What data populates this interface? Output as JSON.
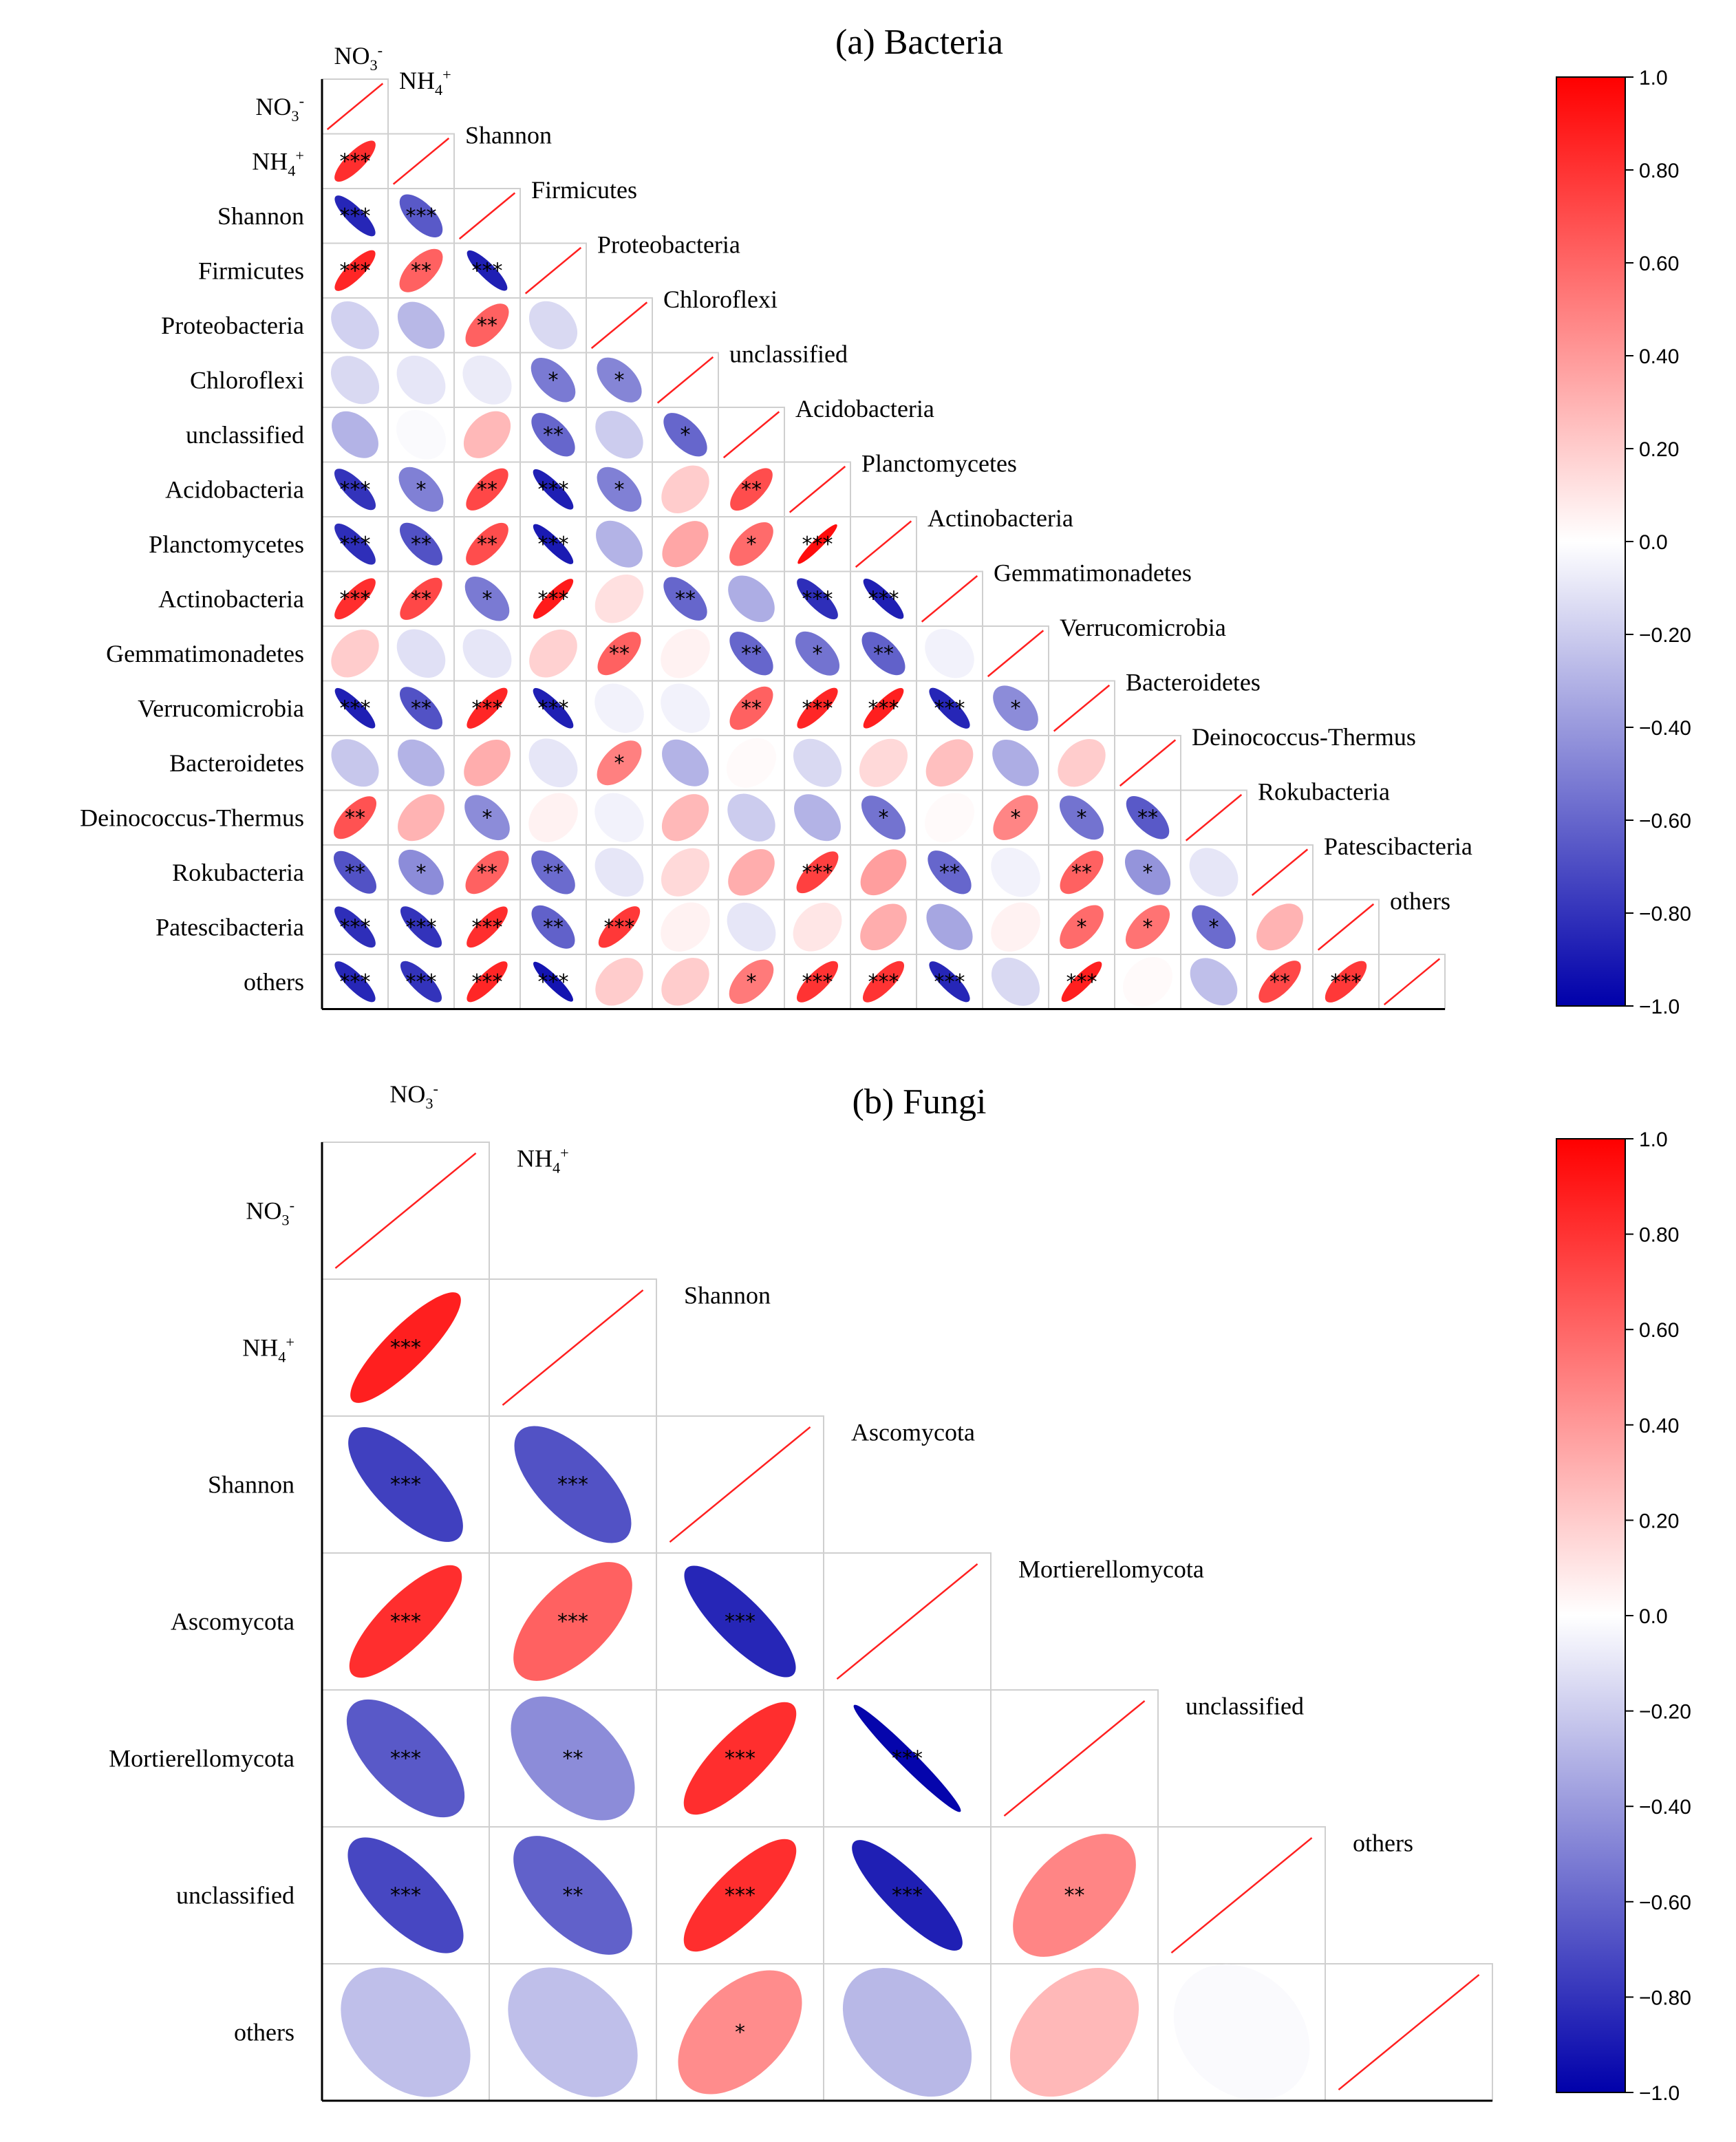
{
  "chart_data": [
    {
      "type": "heatmap",
      "title": "(a) Bacteria",
      "variables": [
        "NO3-",
        "NH4+",
        "Shannon",
        "Firmicutes",
        "Proteobacteria",
        "Chloroflexi",
        "unclassified",
        "Acidobacteria",
        "Planctomycetes",
        "Actinobacteria",
        "Gemmatimonadetes",
        "Verrucomicrobia",
        "Bacteroidetes",
        "Deinococcus-Thermus",
        "Rokubacteria",
        "Patescibacteria",
        "others"
      ],
      "correlations": [
        [
          0.82
        ],
        [
          -0.85,
          -0.65
        ],
        [
          0.85,
          0.62,
          -0.88
        ],
        [
          -0.18,
          -0.28,
          0.62,
          -0.15
        ],
        [
          -0.15,
          -0.1,
          -0.08,
          -0.52,
          -0.48
        ],
        [
          -0.3,
          -0.02,
          0.28,
          -0.6,
          -0.2,
          -0.6
        ],
        [
          -0.8,
          -0.5,
          0.72,
          -0.88,
          -0.5,
          0.2,
          0.7
        ],
        [
          -0.82,
          -0.68,
          0.7,
          -0.9,
          -0.3,
          0.35,
          0.58,
          0.95
        ],
        [
          0.82,
          0.72,
          -0.52,
          0.9,
          0.12,
          -0.6,
          -0.32,
          -0.82,
          -0.88
        ],
        [
          0.2,
          -0.12,
          -0.1,
          0.18,
          0.62,
          0.05,
          -0.6,
          -0.55,
          -0.62,
          -0.05
        ],
        [
          -0.88,
          -0.68,
          0.85,
          -0.88,
          -0.05,
          -0.05,
          0.62,
          0.85,
          0.88,
          -0.85,
          -0.45
        ],
        [
          -0.22,
          -0.3,
          0.32,
          -0.1,
          0.5,
          -0.3,
          0.02,
          -0.15,
          0.15,
          0.25,
          -0.32,
          0.2
        ],
        [
          0.68,
          0.3,
          -0.45,
          0.05,
          -0.05,
          0.28,
          -0.2,
          -0.3,
          -0.55,
          0.02,
          0.48,
          -0.55,
          -0.65
        ],
        [
          -0.68,
          -0.45,
          0.62,
          -0.58,
          -0.1,
          0.15,
          0.32,
          0.75,
          0.38,
          -0.6,
          -0.05,
          0.62,
          -0.42,
          -0.1
        ],
        [
          -0.82,
          -0.8,
          0.82,
          -0.62,
          0.78,
          0.05,
          -0.1,
          0.1,
          0.32,
          -0.35,
          0.05,
          0.58,
          0.55,
          -0.58,
          0.3
        ],
        [
          -0.85,
          -0.8,
          0.85,
          -0.92,
          0.2,
          0.2,
          0.52,
          0.8,
          0.8,
          -0.85,
          -0.15,
          0.88,
          0.02,
          -0.25,
          0.72,
          0.78
        ]
      ],
      "significance": [
        [
          "***"
        ],
        [
          "***",
          "***"
        ],
        [
          "***",
          "**",
          "***"
        ],
        [
          "",
          "",
          "**",
          ""
        ],
        [
          "",
          "",
          "",
          "*",
          "*"
        ],
        [
          "",
          "",
          "",
          "**",
          "",
          "*"
        ],
        [
          "***",
          "*",
          "**",
          "***",
          "*",
          "",
          "**"
        ],
        [
          "***",
          "**",
          "**",
          "***",
          "",
          "",
          "*",
          "***"
        ],
        [
          "***",
          "**",
          "*",
          "***",
          "",
          "**",
          "",
          "***",
          "***"
        ],
        [
          "",
          "",
          "",
          "",
          "**",
          "",
          "**",
          "*",
          "**",
          ""
        ],
        [
          "***",
          "**",
          "***",
          "***",
          "",
          "",
          "**",
          "***",
          "***",
          "***",
          "*"
        ],
        [
          "",
          "",
          "",
          "",
          "*",
          "",
          "",
          "",
          "",
          "",
          "",
          ""
        ],
        [
          "**",
          "",
          "*",
          "",
          "",
          "",
          "",
          "",
          "*",
          "",
          "*",
          "*",
          "**"
        ],
        [
          "**",
          "*",
          "**",
          "**",
          "",
          "",
          "",
          "***",
          "",
          "**",
          "",
          "**",
          "*",
          ""
        ],
        [
          "***",
          "***",
          "***",
          "**",
          "***",
          "",
          "",
          "",
          "",
          "",
          "",
          "*",
          "*",
          "*",
          ""
        ],
        [
          "***",
          "***",
          "***",
          "***",
          "",
          "",
          "*",
          "***",
          "***",
          "***",
          "",
          "***",
          "",
          "",
          "**",
          "***"
        ]
      ],
      "colorbar": {
        "min": -1.0,
        "max": 1.0,
        "ticks": [
          "1.0",
          "0.80",
          "0.60",
          "0.40",
          "0.20",
          "0.0",
          "−0.20",
          "−0.40",
          "−0.60",
          "−0.80",
          "−1.0"
        ]
      }
    },
    {
      "type": "heatmap",
      "title": "(b) Fungi",
      "variables": [
        "NO3-",
        "NH4+",
        "Shannon",
        "Ascomycota",
        "Mortierellomycota",
        "unclassified",
        "others"
      ],
      "correlations": [
        [
          0.88
        ],
        [
          -0.75,
          -0.68
        ],
        [
          0.82,
          0.62,
          -0.85
        ],
        [
          -0.65,
          -0.45,
          0.82,
          -0.98
        ],
        [
          -0.72,
          -0.62,
          0.82,
          -0.88,
          0.48
        ],
        [
          -0.25,
          -0.25,
          0.45,
          -0.28,
          0.28,
          -0.02
        ]
      ],
      "significance": [
        [
          "***"
        ],
        [
          "***",
          "***"
        ],
        [
          "***",
          "***",
          "***"
        ],
        [
          "***",
          "**",
          "***",
          "***"
        ],
        [
          "***",
          "**",
          "***",
          "***",
          "**"
        ],
        [
          "",
          "",
          "*",
          "",
          "",
          ""
        ]
      ],
      "colorbar": {
        "min": -1.0,
        "max": 1.0,
        "ticks": [
          "1.0",
          "0.80",
          "0.60",
          "0.40",
          "0.20",
          "0.0",
          "−0.20",
          "−0.40",
          "−0.60",
          "−0.80",
          "−1.0"
        ]
      }
    }
  ],
  "labels": {
    "no3_base": "NO",
    "no3_sub": "3",
    "no3_sup": "-",
    "nh4_base": "NH",
    "nh4_sub": "4",
    "nh4_sup": "+"
  },
  "colors": {
    "positive": "#ff0000",
    "negative": "#0000aa",
    "neutral": "#ffffff",
    "diagonal": "#ff2020"
  }
}
